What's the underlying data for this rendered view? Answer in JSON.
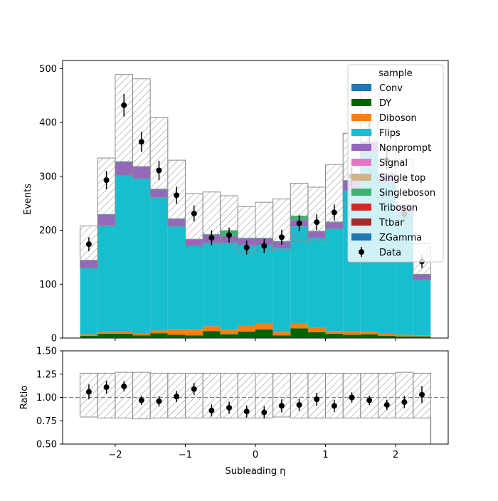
{
  "chart_data": [
    {
      "type": "bar",
      "stacked": true,
      "ylabel": "Events",
      "xlim": [
        -2.75,
        2.75
      ],
      "ylim": [
        0,
        515
      ],
      "x_bin_edges": [
        -2.5,
        -2.25,
        -2.0,
        -1.75,
        -1.5,
        -1.25,
        -1.0,
        -0.75,
        -0.5,
        -0.25,
        0.0,
        0.25,
        0.5,
        0.75,
        1.0,
        1.25,
        1.5,
        1.75,
        2.0,
        2.25,
        2.5
      ],
      "xticks": [
        "−2",
        "−1",
        "0",
        "1",
        "2"
      ],
      "xtick_values": [
        -2,
        -1,
        0,
        1,
        2
      ],
      "yticks": [
        "0",
        "100",
        "200",
        "300",
        "400",
        "500"
      ],
      "ytick_values": [
        0,
        100,
        200,
        300,
        400,
        500
      ],
      "legend_title": "sample",
      "legend_position": "top-right",
      "series": [
        {
          "name": "Conv",
          "color": "#1f77b4",
          "values": [
            1,
            1,
            1,
            1,
            1,
            1,
            1,
            1,
            1,
            1,
            1,
            1,
            1,
            1,
            1,
            1,
            1,
            1,
            1,
            1
          ]
        },
        {
          "name": "DY",
          "color": "#006400",
          "values": [
            3,
            7,
            7,
            4,
            8,
            5,
            4,
            12,
            6,
            11,
            15,
            4,
            17,
            10,
            7,
            5,
            6,
            3,
            2,
            2
          ]
        },
        {
          "name": "Diboson",
          "color": "#ff7f0e",
          "values": [
            3,
            3,
            4,
            3,
            5,
            10,
            11,
            9,
            8,
            11,
            11,
            6,
            9,
            8,
            5,
            6,
            5,
            4,
            3,
            2
          ]
        },
        {
          "name": "Flips",
          "color": "#17becf",
          "values": [
            123,
            198,
            290,
            288,
            247,
            192,
            155,
            155,
            162,
            150,
            146,
            156,
            180,
            167,
            190,
            262,
            332,
            280,
            226,
            103
          ]
        },
        {
          "name": "Nonprompt",
          "color": "#9467bd",
          "values": [
            14,
            20,
            25,
            22,
            15,
            13,
            12,
            15,
            12,
            12,
            12,
            12,
            12,
            12,
            12,
            18,
            20,
            17,
            15,
            10
          ]
        },
        {
          "name": "Signal",
          "color": "#e377c2",
          "values": [
            0,
            0,
            0,
            0,
            0,
            0,
            0,
            0,
            0,
            0,
            0,
            0,
            0,
            0,
            0,
            0,
            0,
            0,
            0,
            0
          ]
        },
        {
          "name": "Single top",
          "color": "#d2b48c",
          "values": [
            0,
            0,
            0,
            0,
            0,
            0,
            0,
            0,
            0,
            0,
            0,
            0,
            0,
            0,
            0,
            0,
            0,
            0,
            0,
            0
          ]
        },
        {
          "name": "Singleboson",
          "color": "#3cb371",
          "values": [
            1,
            1,
            1,
            1,
            1,
            1,
            1,
            1,
            11,
            1,
            1,
            1,
            8,
            1,
            1,
            1,
            1,
            1,
            1,
            1
          ]
        },
        {
          "name": "Triboson",
          "color": "#d62728",
          "values": [
            0,
            0,
            0,
            0,
            0,
            0,
            0,
            0,
            0,
            0,
            0,
            0,
            0,
            0,
            0,
            0,
            0,
            0,
            0,
            0
          ]
        },
        {
          "name": "Ttbar",
          "color": "#a52a2a",
          "values": [
            0,
            0,
            0,
            0,
            0,
            0,
            0,
            0,
            0,
            0,
            0,
            0,
            0,
            0,
            0,
            0,
            0,
            0,
            0,
            0
          ]
        },
        {
          "name": "ZGamma",
          "color": "#1f77b4",
          "values": [
            0,
            0,
            0,
            0,
            0,
            0,
            0,
            0,
            0,
            0,
            0,
            0,
            0,
            0,
            0,
            0,
            0,
            0,
            0,
            0
          ]
        }
      ],
      "uncertainty_band": {
        "low": [
          130,
          208,
          302,
          296,
          257,
          207,
          168,
          175,
          172,
          158,
          163,
          162,
          180,
          175,
          203,
          250,
          318,
          260,
          210,
          108
        ],
        "high": [
          208,
          334,
          489,
          481,
          409,
          330,
          268,
          271,
          264,
          244,
          252,
          258,
          287,
          280,
          322,
          380,
          462,
          400,
          332,
          175
        ]
      },
      "data": {
        "name": "Data",
        "values": [
          174,
          293,
          432,
          364,
          311,
          265,
          231,
          186,
          191,
          168,
          171,
          187,
          213,
          215,
          233,
          300,
          380,
          330,
          230,
          142
        ],
        "errors": [
          13,
          17,
          21,
          19,
          18,
          16,
          15,
          14,
          14,
          13,
          13,
          14,
          15,
          15,
          15,
          17,
          19,
          18,
          15,
          12
        ]
      }
    },
    {
      "type": "scatter",
      "xlabel": "Subleading η",
      "ylabel": "Ratio",
      "xlim": [
        -2.75,
        2.75
      ],
      "ylim": [
        0.5,
        1.5
      ],
      "xticks": [
        "−2",
        "−1",
        "0",
        "1",
        "2"
      ],
      "xtick_values": [
        -2,
        -1,
        0,
        1,
        2
      ],
      "yticks": [
        "0.50",
        "0.75",
        "1.00",
        "1.25",
        "1.50"
      ],
      "ytick_values": [
        0.5,
        0.75,
        1.0,
        1.25,
        1.5
      ],
      "reference_line": 1.0,
      "x": [
        -2.375,
        -2.125,
        -1.875,
        -1.625,
        -1.375,
        -1.125,
        -0.875,
        -0.625,
        -0.375,
        -0.125,
        0.125,
        0.375,
        0.625,
        0.875,
        1.125,
        1.375,
        1.625,
        1.875,
        2.125,
        2.375
      ],
      "y": [
        1.06,
        1.11,
        1.12,
        0.97,
        0.96,
        1.01,
        1.09,
        0.86,
        0.89,
        0.85,
        0.84,
        0.91,
        0.92,
        0.98,
        0.91,
        1.0,
        0.97,
        0.92,
        0.95,
        1.03
      ],
      "yerr": [
        0.08,
        0.07,
        0.055,
        0.05,
        0.055,
        0.06,
        0.065,
        0.065,
        0.065,
        0.065,
        0.065,
        0.07,
        0.065,
        0.07,
        0.065,
        0.055,
        0.05,
        0.055,
        0.065,
        0.09
      ],
      "uncertainty_band": {
        "low": [
          0.79,
          0.78,
          0.78,
          0.77,
          0.78,
          0.78,
          0.78,
          0.78,
          0.78,
          0.78,
          0.78,
          0.79,
          0.78,
          0.78,
          0.78,
          0.78,
          0.78,
          0.78,
          0.78,
          0.78
        ],
        "high": [
          1.26,
          1.26,
          1.27,
          1.27,
          1.26,
          1.26,
          1.26,
          1.26,
          1.26,
          1.26,
          1.26,
          1.26,
          1.26,
          1.26,
          1.26,
          1.26,
          1.26,
          1.26,
          1.27,
          1.26
        ]
      }
    }
  ]
}
